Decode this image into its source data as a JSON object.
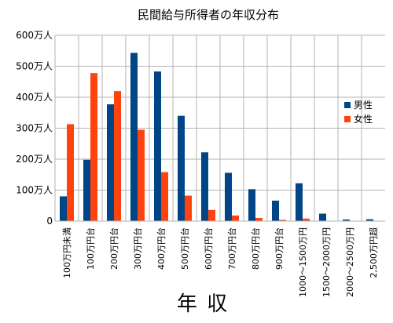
{
  "chart_data": {
    "type": "bar",
    "title": "民間給与所得者の年収分布",
    "xlabel": "年 収",
    "ylabel": "",
    "ylim": [
      0,
      600
    ],
    "yticks": [
      0,
      100,
      200,
      300,
      400,
      500,
      600
    ],
    "ytick_labels": [
      "0",
      "100万人",
      "200万人",
      "300万人",
      "400万人",
      "500万人",
      "600万人"
    ],
    "grid": true,
    "legend_position": "right",
    "categories": [
      "100万円未満",
      "100万円台",
      "200万円台",
      "300万円台",
      "400万円台",
      "500万円台",
      "600万円台",
      "700万円台",
      "800万円台",
      "900万円台",
      "1000～1500万円",
      "1500～2000万円",
      "2000～2500万円",
      "2,500万円超"
    ],
    "series": [
      {
        "name": "男性",
        "color": "#004586",
        "values": [
          80,
          198,
          377,
          543,
          483,
          340,
          222,
          156,
          103,
          66,
          122,
          24,
          5,
          6
        ]
      },
      {
        "name": "女性",
        "color": "#ff420e",
        "values": [
          313,
          478,
          420,
          295,
          158,
          82,
          36,
          18,
          10,
          4,
          8,
          1,
          0,
          0
        ]
      }
    ]
  }
}
